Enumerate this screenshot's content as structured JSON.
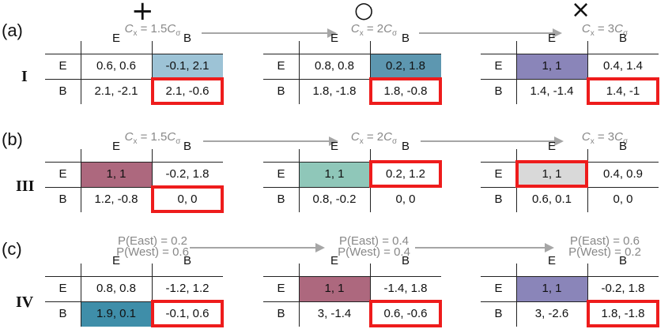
{
  "column_symbols": [
    "+",
    "○",
    "×"
  ],
  "panels": [
    {
      "label": "(a)",
      "roman": "I",
      "flow": [
        {
          "pre": "",
          "var": "C",
          "sub": "x",
          "post": " = 1.5",
          "var2": "C",
          "sub2": "σ"
        },
        {
          "pre": "",
          "var": "C",
          "sub": "x",
          "post": " = 2",
          "var2": "C",
          "sub2": "σ"
        },
        {
          "pre": "",
          "var": "C",
          "sub": "x",
          "post": " = 3",
          "var2": "C",
          "sub2": "σ"
        }
      ],
      "games": [
        {
          "cols": [
            "E",
            "B"
          ],
          "rows": [
            "E",
            "B"
          ],
          "cells": [
            [
              "0.6, 0.6",
              "-0.1, 2.1"
            ],
            [
              "2.1, -2.1",
              "2.1, -0.6"
            ]
          ],
          "shade": {
            "r": 0,
            "c": 1,
            "color": "#9dc3d6"
          },
          "highlight": {
            "r": 1,
            "c": 1
          }
        },
        {
          "cols": [
            "E",
            "B"
          ],
          "rows": [
            "E",
            "B"
          ],
          "cells": [
            [
              "0.8, 0.8",
              "0.2, 1.8"
            ],
            [
              "1.8, -1.8",
              "1.8, -0.8"
            ]
          ],
          "shade": {
            "r": 0,
            "c": 1,
            "color": "#5d97b0"
          },
          "highlight": {
            "r": 1,
            "c": 1
          }
        },
        {
          "cols": [
            "E",
            "B"
          ],
          "rows": [
            "E",
            "B"
          ],
          "cells": [
            [
              "1, 1",
              "0.4, 1.4"
            ],
            [
              "1.4, -1.4",
              "1.4, -1"
            ]
          ],
          "shade": {
            "r": 0,
            "c": 0,
            "color": "#8a85b9"
          },
          "highlight": {
            "r": 1,
            "c": 1
          }
        }
      ]
    },
    {
      "label": "(b)",
      "roman": "III",
      "flow": [
        {
          "pre": "",
          "var": "C",
          "sub": "x",
          "post": " = 1.5",
          "var2": "C",
          "sub2": "σ"
        },
        {
          "pre": "",
          "var": "C",
          "sub": "x",
          "post": " = 2",
          "var2": "C",
          "sub2": "σ"
        },
        {
          "pre": "",
          "var": "C",
          "sub": "x",
          "post": " = 3",
          "var2": "C",
          "sub2": "σ"
        }
      ],
      "games": [
        {
          "cols": [
            "E",
            "B"
          ],
          "rows": [
            "E",
            "B"
          ],
          "cells": [
            [
              "1, 1",
              "-0.2, 1.8"
            ],
            [
              "1.2, -0.8",
              "0, 0"
            ]
          ],
          "shade": {
            "r": 0,
            "c": 0,
            "color": "#ad687e"
          },
          "highlight": {
            "r": 1,
            "c": 1
          }
        },
        {
          "cols": [
            "E",
            "B"
          ],
          "rows": [
            "E",
            "B"
          ],
          "cells": [
            [
              "1, 1",
              "0.2, 1.2"
            ],
            [
              "0.8, -0.2",
              "0, 0"
            ]
          ],
          "shade": {
            "r": 0,
            "c": 0,
            "color": "#8fc7b9"
          },
          "highlight": {
            "r": 0,
            "c": 1
          }
        },
        {
          "cols": [
            "E",
            "B"
          ],
          "rows": [
            "E",
            "B"
          ],
          "cells": [
            [
              "1, 1",
              "0.4, 0.9"
            ],
            [
              "0.6, 0.1",
              "0, 0"
            ]
          ],
          "shade": {
            "r": 0,
            "c": 0,
            "color": "#d9d9d9"
          },
          "highlight": {
            "r": 0,
            "c": 0
          }
        }
      ]
    },
    {
      "label": "(c)",
      "roman": "IV",
      "flow2": [
        {
          "line1": "P(East) = 0.2",
          "line2": "P(West) = 0.6"
        },
        {
          "line1": "P(East) = 0.4",
          "line2": "P(West) = 0.4"
        },
        {
          "line1": "P(East) = 0.6",
          "line2": "P(West) = 0.2"
        }
      ],
      "games": [
        {
          "cols": [
            "E",
            "B"
          ],
          "rows": [
            "E",
            "B"
          ],
          "cells": [
            [
              "0.8, 0.8",
              "-1.2, 1.2"
            ],
            [
              "1.9, 0.1",
              "-0.1, 0.6"
            ]
          ],
          "shade": {
            "r": 1,
            "c": 0,
            "color": "#3f8ea9"
          },
          "highlight": {
            "r": 1,
            "c": 1
          }
        },
        {
          "cols": [
            "E",
            "B"
          ],
          "rows": [
            "E",
            "B"
          ],
          "cells": [
            [
              "1, 1",
              "-1.4, 1.8"
            ],
            [
              "3, -1.4",
              "0.6, -0.6"
            ]
          ],
          "shade": {
            "r": 0,
            "c": 0,
            "color": "#ad687e"
          },
          "highlight": {
            "r": 1,
            "c": 1
          }
        },
        {
          "cols": [
            "E",
            "B"
          ],
          "rows": [
            "E",
            "B"
          ],
          "cells": [
            [
              "1, 1",
              "-0.2, 1.8"
            ],
            [
              "3, -2.6",
              "1.8, -1.8"
            ]
          ],
          "shade": {
            "r": 0,
            "c": 0,
            "color": "#8a85b9"
          },
          "highlight": {
            "r": 1,
            "c": 1
          }
        }
      ]
    }
  ]
}
